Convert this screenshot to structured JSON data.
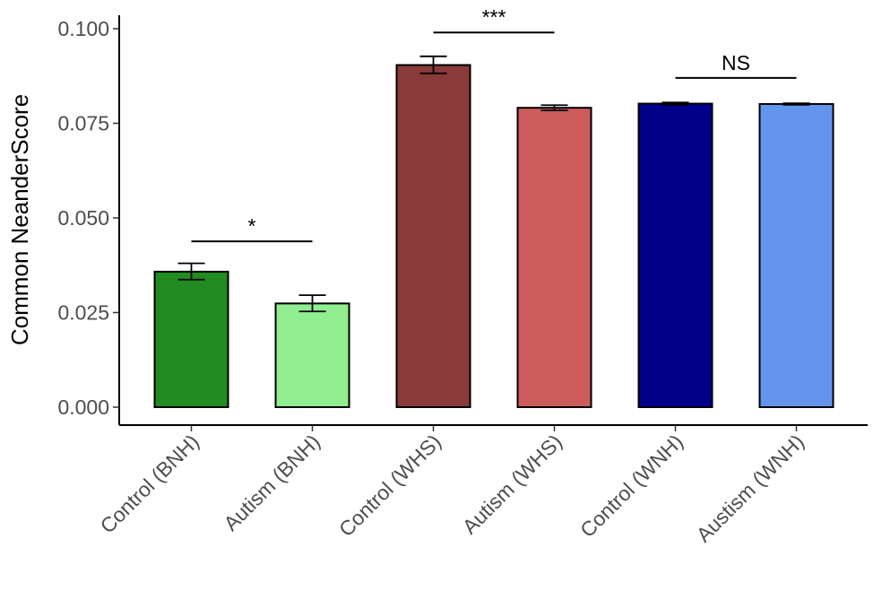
{
  "chart_data": {
    "type": "bar",
    "title": "",
    "xlabel": "",
    "ylabel": "Common NeanderScore",
    "ylim": [
      0,
      0.1
    ],
    "yticks": [
      "0.000",
      "0.025",
      "0.050",
      "0.075",
      "0.100"
    ],
    "ytick_values": [
      0,
      0.025,
      0.05,
      0.075,
      0.1
    ],
    "grid": false,
    "legend": "none",
    "categories": [
      "Control (BNH)",
      "Autism (BNH)",
      "Control (WHS)",
      "Autism (WHS)",
      "Control (WNH)",
      "Austism (WNH)"
    ],
    "values": [
      0.0358,
      0.0274,
      0.0904,
      0.0791,
      0.0802,
      0.0801
    ],
    "error_low": [
      0.0337,
      0.0253,
      0.0882,
      0.0784,
      0.0799,
      0.0799
    ],
    "error_high": [
      0.038,
      0.0296,
      0.0927,
      0.0798,
      0.0805,
      0.0803
    ],
    "colors": [
      "#228b22",
      "#90ee90",
      "#8b3a3a",
      "#cd5c5c",
      "#00008b",
      "#6495ed"
    ],
    "annotations": [
      {
        "label": "*",
        "from": 0,
        "to": 1,
        "y": 0.0438
      },
      {
        "label": "***",
        "from": 2,
        "to": 3,
        "y": 0.099
      },
      {
        "label": "NS",
        "from": 4,
        "to": 5,
        "y": 0.087
      }
    ]
  }
}
